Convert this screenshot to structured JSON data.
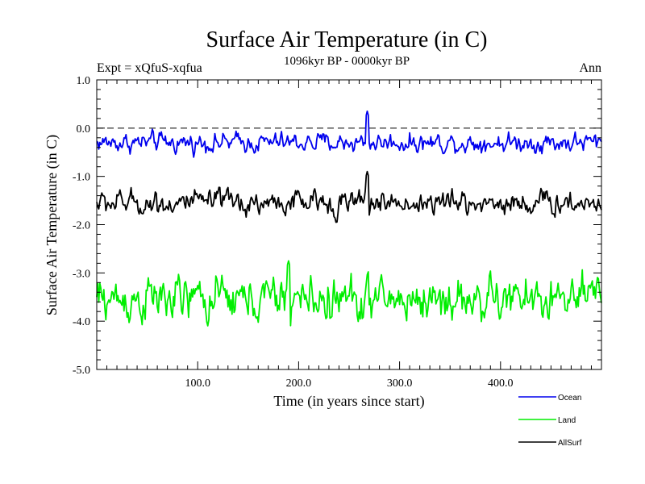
{
  "chart_data": {
    "type": "line",
    "title": "Surface Air Temperature (in C)",
    "subtitle": "1096kyr BP - 0000kyr BP",
    "left_label": "Expt = xQfuS-xqfua",
    "right_label": "Ann",
    "xlabel": "Time (in years since start)",
    "ylabel": "Surface Air Temperature (in C)",
    "xlim": [
      0,
      500
    ],
    "ylim": [
      -5.0,
      1.0
    ],
    "x_ticks": [
      100,
      200,
      300,
      400
    ],
    "x_tick_labels": [
      "100.0",
      "200.0",
      "300.0",
      "400.0"
    ],
    "y_ticks": [
      1,
      0,
      -1,
      -2,
      -3,
      -4,
      -5
    ],
    "y_tick_labels": [
      "1.0",
      "0.0",
      "-1.0",
      "-2.0",
      "-3.0",
      "-4.0",
      "-5.0"
    ],
    "reference_line": 0.0,
    "legend_position": "bottom-right",
    "series": [
      {
        "name": "Ocean",
        "color": "#0000ee",
        "mean": -0.3,
        "amplitude": 0.12,
        "min": -0.62,
        "max": 0.35,
        "peak_x": 268
      },
      {
        "name": "Land",
        "color": "#00ee00",
        "mean": -3.55,
        "amplitude": 0.28,
        "min": -4.25,
        "max": -2.75,
        "peak_x": 190
      },
      {
        "name": "AllSurf",
        "color": "#000000",
        "mean": -1.55,
        "amplitude": 0.15,
        "min": -1.95,
        "max": -0.9,
        "peak_x": 268
      }
    ]
  }
}
